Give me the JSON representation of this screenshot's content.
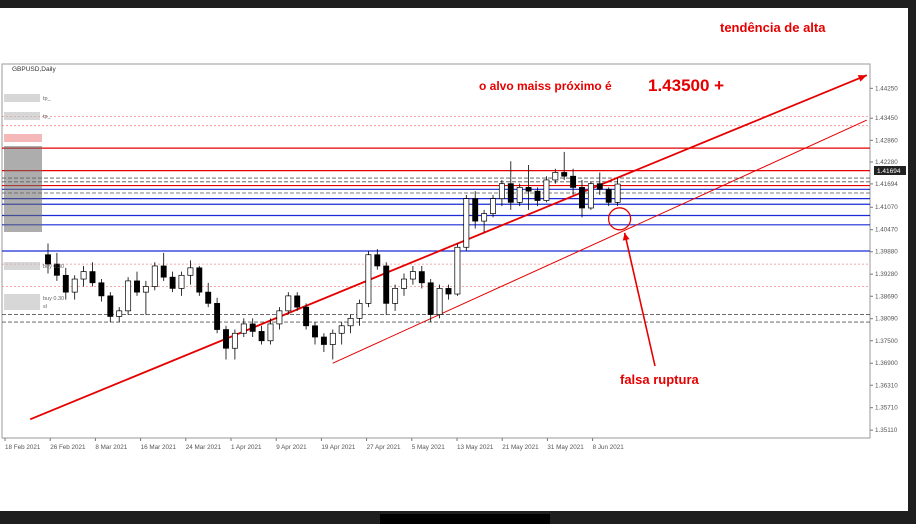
{
  "window": {
    "symbol_title": "GBPUSD,Daily"
  },
  "annotations": {
    "trend_label": "tendência de alta",
    "target_text": "o alvo maiss próximo é",
    "target_value": "1.43500 +",
    "false_break_label": "falsa ruptura"
  },
  "price_badge": "1.41694",
  "left_tags": [
    "tp_",
    "tp_",
    "buy 0.30",
    "buy 0.30",
    "sl"
  ],
  "colors": {
    "bull": "#ffffff",
    "bear": "#000000",
    "annotation": "#e60000",
    "level": "#1a2bd6",
    "grid": "#c9c9c9"
  },
  "chart_data": {
    "type": "candlestick",
    "symbol": "GBPUSD",
    "timeframe": "Daily",
    "ylim": [
      1.349,
      1.449
    ],
    "y_ticks": [
      "1.44250",
      "1.43450",
      "1.42860",
      "1.42280",
      "1.41694",
      "1.41070",
      "1.40470",
      "1.39880",
      "1.39280",
      "1.38690",
      "1.38090",
      "1.37500",
      "1.36900",
      "1.36310",
      "1.35710",
      "1.35110"
    ],
    "x_ticks": [
      "18 Feb 2021",
      "26 Feb 2021",
      "8 Mar 2021",
      "16 Mar 2021",
      "24 Mar 2021",
      "1 Apr 2021",
      "9 Apr 2021",
      "19 Apr 2021",
      "27 Apr 2021",
      "5 May 2021",
      "13 May 2021",
      "21 May 2021",
      "31 May 2021",
      "8 Jun 2021"
    ],
    "candles": [
      [
        1.398,
        1.401,
        1.393,
        1.3955
      ],
      [
        1.3955,
        1.3985,
        1.391,
        1.3925
      ],
      [
        1.3925,
        1.3945,
        1.386,
        1.388
      ],
      [
        1.388,
        1.3925,
        1.386,
        1.3915
      ],
      [
        1.3915,
        1.395,
        1.3895,
        1.3935
      ],
      [
        1.3935,
        1.396,
        1.3895,
        1.3905
      ],
      [
        1.3905,
        1.3915,
        1.3855,
        1.387
      ],
      [
        1.387,
        1.388,
        1.38,
        1.3815
      ],
      [
        1.3815,
        1.384,
        1.38,
        1.383
      ],
      [
        1.383,
        1.392,
        1.382,
        1.391
      ],
      [
        1.391,
        1.3935,
        1.387,
        1.388
      ],
      [
        1.388,
        1.391,
        1.382,
        1.3895
      ],
      [
        1.3895,
        1.396,
        1.3885,
        1.395
      ],
      [
        1.395,
        1.3985,
        1.391,
        1.392
      ],
      [
        1.392,
        1.3935,
        1.388,
        1.389
      ],
      [
        1.389,
        1.3935,
        1.387,
        1.3925
      ],
      [
        1.3925,
        1.3965,
        1.39,
        1.3945
      ],
      [
        1.3945,
        1.395,
        1.387,
        1.388
      ],
      [
        1.388,
        1.3905,
        1.384,
        1.385
      ],
      [
        1.385,
        1.3865,
        1.377,
        1.378
      ],
      [
        1.378,
        1.379,
        1.37,
        1.373
      ],
      [
        1.373,
        1.378,
        1.37,
        1.377
      ],
      [
        1.377,
        1.381,
        1.376,
        1.3795
      ],
      [
        1.3795,
        1.381,
        1.376,
        1.3775
      ],
      [
        1.3775,
        1.379,
        1.374,
        1.375
      ],
      [
        1.375,
        1.381,
        1.374,
        1.3795
      ],
      [
        1.3795,
        1.384,
        1.378,
        1.383
      ],
      [
        1.383,
        1.388,
        1.382,
        1.387
      ],
      [
        1.387,
        1.388,
        1.383,
        1.384
      ],
      [
        1.384,
        1.385,
        1.378,
        1.379
      ],
      [
        1.379,
        1.38,
        1.374,
        1.376
      ],
      [
        1.376,
        1.377,
        1.372,
        1.374
      ],
      [
        1.374,
        1.378,
        1.37,
        1.377
      ],
      [
        1.377,
        1.38,
        1.374,
        1.379
      ],
      [
        1.379,
        1.382,
        1.377,
        1.381
      ],
      [
        1.381,
        1.386,
        1.379,
        1.385
      ],
      [
        1.385,
        1.399,
        1.384,
        1.398
      ],
      [
        1.398,
        1.3995,
        1.394,
        1.395
      ],
      [
        1.395,
        1.396,
        1.382,
        1.385
      ],
      [
        1.385,
        1.39,
        1.383,
        1.389
      ],
      [
        1.389,
        1.393,
        1.387,
        1.3915
      ],
      [
        1.3915,
        1.395,
        1.39,
        1.3935
      ],
      [
        1.3935,
        1.395,
        1.389,
        1.3905
      ],
      [
        1.3905,
        1.3915,
        1.38,
        1.382
      ],
      [
        1.382,
        1.39,
        1.381,
        1.389
      ],
      [
        1.389,
        1.39,
        1.386,
        1.3875
      ],
      [
        1.3875,
        1.401,
        1.387,
        1.4
      ],
      [
        1.4,
        1.414,
        1.399,
        1.413
      ],
      [
        1.413,
        1.415,
        1.405,
        1.407
      ],
      [
        1.407,
        1.41,
        1.404,
        1.409
      ],
      [
        1.409,
        1.414,
        1.408,
        1.413
      ],
      [
        1.413,
        1.418,
        1.411,
        1.417
      ],
      [
        1.417,
        1.423,
        1.41,
        1.412
      ],
      [
        1.412,
        1.417,
        1.411,
        1.416
      ],
      [
        1.416,
        1.422,
        1.41,
        1.415
      ],
      [
        1.415,
        1.416,
        1.411,
        1.4125
      ],
      [
        1.4125,
        1.419,
        1.412,
        1.418
      ],
      [
        1.418,
        1.421,
        1.417,
        1.42
      ],
      [
        1.42,
        1.4255,
        1.418,
        1.419
      ],
      [
        1.419,
        1.421,
        1.414,
        1.416
      ],
      [
        1.416,
        1.418,
        1.408,
        1.4105
      ],
      [
        1.4105,
        1.4175,
        1.41,
        1.417
      ],
      [
        1.417,
        1.42,
        1.414,
        1.4155
      ],
      [
        1.4155,
        1.416,
        1.411,
        1.412
      ],
      [
        1.412,
        1.4185,
        1.411,
        1.4169
      ]
    ],
    "levels": [
      {
        "price": 1.435,
        "color": "#f08a8a",
        "style": "dotted"
      },
      {
        "price": 1.4325,
        "color": "#f08a8a",
        "style": "dotted"
      },
      {
        "price": 1.4265,
        "color": "#e60000",
        "style": "solid"
      },
      {
        "price": 1.4205,
        "color": "#e60000",
        "style": "solid"
      },
      {
        "price": 1.4185,
        "color": "#555555",
        "style": "dashed"
      },
      {
        "price": 1.4175,
        "color": "#555555",
        "style": "dashed"
      },
      {
        "price": 1.4165,
        "color": "#e60000",
        "style": "solid"
      },
      {
        "price": 1.4155,
        "color": "#1a2bd6",
        "style": "solid"
      },
      {
        "price": 1.4145,
        "color": "#555555",
        "style": "dashed"
      },
      {
        "price": 1.413,
        "color": "#1a2bd6",
        "style": "solid"
      },
      {
        "price": 1.4115,
        "color": "#1a2bd6",
        "style": "solid"
      },
      {
        "price": 1.4085,
        "color": "#1a2bd6",
        "style": "solid"
      },
      {
        "price": 1.406,
        "color": "#1a2bd6",
        "style": "solid"
      },
      {
        "price": 1.399,
        "color": "#1a2bd6",
        "style": "solid"
      },
      {
        "price": 1.3955,
        "color": "#f08a8a",
        "style": "dotted"
      },
      {
        "price": 1.3895,
        "color": "#f08a8a",
        "style": "dotted"
      },
      {
        "price": 1.382,
        "color": "#555555",
        "style": "dashed"
      },
      {
        "price": 1.38,
        "color": "#555555",
        "style": "dashed"
      }
    ],
    "trendlines": [
      {
        "name": "upper",
        "from_bar": -2,
        "from_price": 1.354,
        "to_bar": 92,
        "to_price": 1.446
      },
      {
        "name": "lower",
        "from_bar": 32,
        "from_price": 1.369,
        "to_bar": 92,
        "to_price": 1.434
      }
    ],
    "false_break_marker": {
      "bar": 64,
      "price": 1.406
    }
  }
}
